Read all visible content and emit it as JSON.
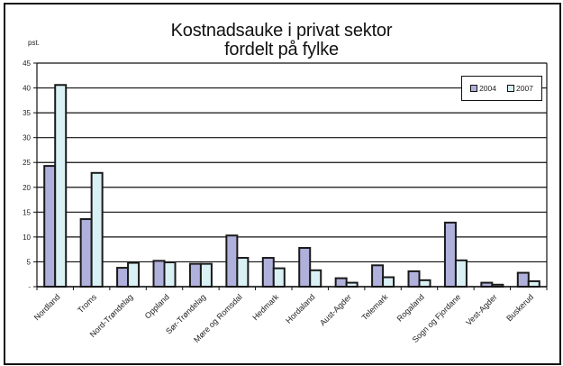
{
  "chart_data": {
    "type": "bar",
    "title": "Kostnadsauke i privat sektor fordelt på fylke",
    "title_lines": [
      "Kostnadsauke i privat sektor",
      "fordelt på fylke"
    ],
    "xlabel": "",
    "ylabel": "pst.",
    "ylim": [
      0,
      45
    ],
    "yticks": [
      0,
      5,
      10,
      15,
      20,
      25,
      30,
      35,
      40,
      45
    ],
    "ytick_labels": [
      "-",
      "5",
      "10",
      "15",
      "20",
      "25",
      "30",
      "35",
      "40",
      "45"
    ],
    "grid": true,
    "legend_position": "upper right",
    "categories": [
      "Nordland",
      "Troms",
      "Nord-Trøndelag",
      "Oppland",
      "Sør-Trøndelag",
      "Møre og Romsdal",
      "Hedmark",
      "Hordaland",
      "Aust-Agder",
      "Telemark",
      "Rogaland",
      "Sogn og Fjordane",
      "Vest-Agder",
      "Buskerud"
    ],
    "series": [
      {
        "name": "2004",
        "color": "#b0b0dc",
        "values": [
          24.3,
          13.6,
          3.8,
          5.2,
          4.6,
          10.3,
          5.8,
          7.8,
          1.7,
          4.3,
          3.1,
          12.9,
          0.8,
          2.8
        ]
      },
      {
        "name": "2007",
        "color": "#d9f0f5",
        "values": [
          40.6,
          22.9,
          4.8,
          4.9,
          4.6,
          5.8,
          3.7,
          3.3,
          0.8,
          1.9,
          1.3,
          5.3,
          0.4,
          1.1
        ]
      }
    ]
  },
  "legend": {
    "items": [
      {
        "label": "2004",
        "color": "#b0b0dc"
      },
      {
        "label": "2007",
        "color": "#d9f0f5"
      }
    ]
  },
  "axis": {
    "unit_label": "pst."
  }
}
